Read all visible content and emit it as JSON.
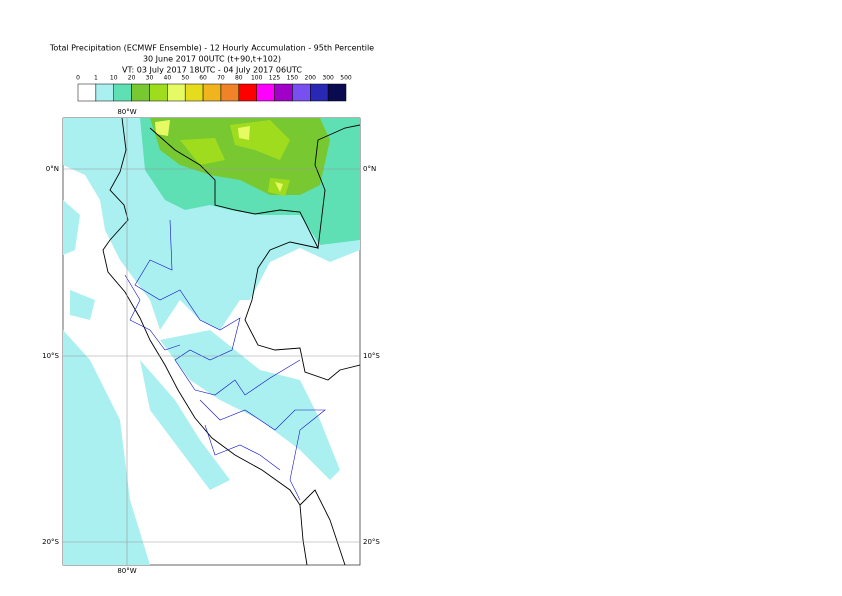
{
  "title": [
    "Total Precipitation (ECMWF Ensemble) - 12 Hourly Accumulation - 95th Percentile",
    "30 June 2017 00UTC (t+90,t+102)",
    "VT: 03 July 2017 18UTC - 04 July 2017 06UTC"
  ],
  "legend": {
    "labels": [
      0,
      1,
      10,
      20,
      30,
      40,
      50,
      60,
      70,
      80,
      100,
      125,
      150,
      200,
      300,
      500
    ],
    "colors": [
      "#ffffff",
      "#aaf0f0",
      "#5ee0b4",
      "#78c832",
      "#a0dc1e",
      "#e6fa64",
      "#e6dc1e",
      "#f0b41e",
      "#f08228",
      "#ff0000",
      "#ff00ff",
      "#a000c8",
      "#7850f0",
      "#2828b4",
      "#0a0a50"
    ]
  },
  "map": {
    "lon_labels": [
      "80°W"
    ],
    "lat_labels": [
      "0°N",
      "10°S",
      "20°S"
    ]
  }
}
